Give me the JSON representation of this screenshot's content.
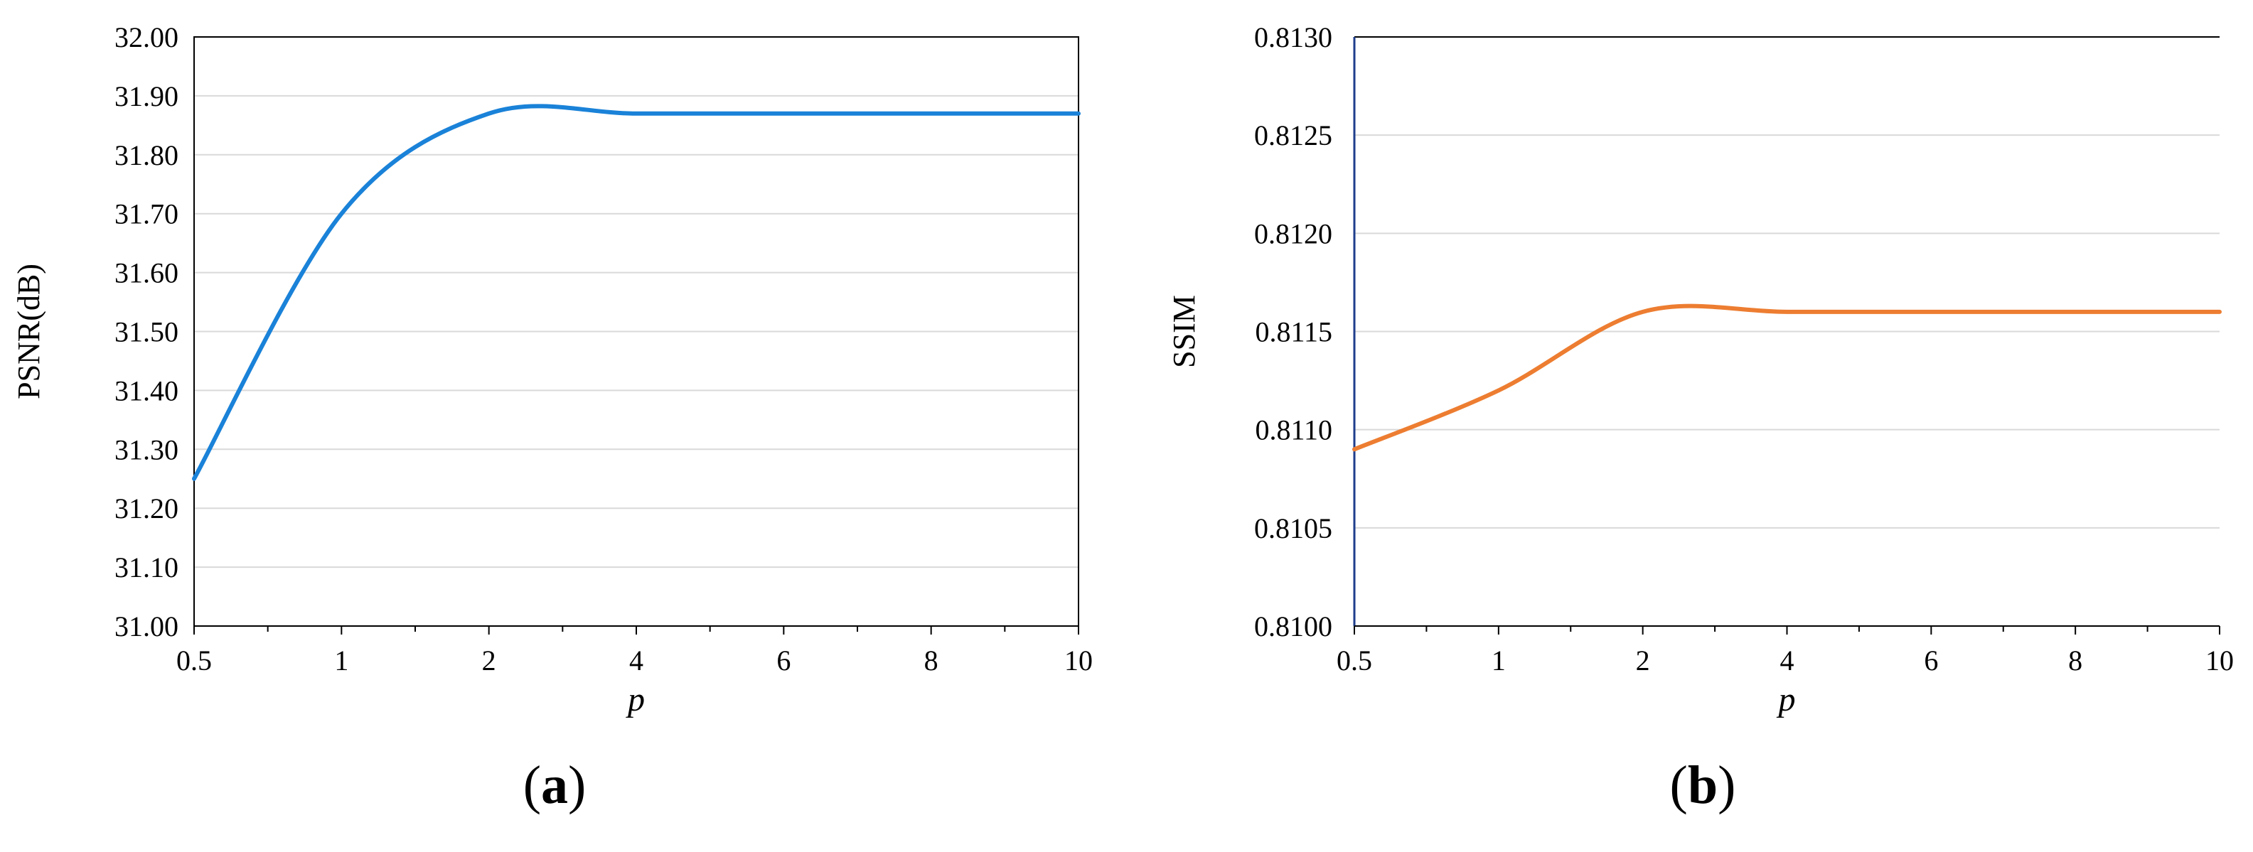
{
  "chart_data": [
    {
      "type": "line",
      "panel_label": "a",
      "xlabel": "p",
      "ylabel": "PSNR(dB)",
      "x_ticks": [
        "0.5",
        "1",
        "2",
        "4",
        "6",
        "8",
        "10"
      ],
      "y_ticks": [
        "31.00",
        "31.10",
        "31.20",
        "31.30",
        "31.40",
        "31.50",
        "31.60",
        "31.70",
        "31.80",
        "31.90",
        "32.00"
      ],
      "ylim": [
        31.0,
        32.0
      ],
      "grid": "horizontal",
      "series": [
        {
          "color": "#1a82d8",
          "x": [
            "0.5",
            "1",
            "2",
            "4",
            "6",
            "8",
            "10"
          ],
          "values": [
            31.25,
            31.7,
            31.87,
            31.87,
            31.87,
            31.87,
            31.87
          ]
        }
      ]
    },
    {
      "type": "line",
      "panel_label": "b",
      "xlabel": "p",
      "ylabel": "SSIM",
      "x_ticks": [
        "0.5",
        "1",
        "2",
        "4",
        "6",
        "8",
        "10"
      ],
      "y_ticks": [
        "0.8100",
        "0.8105",
        "0.8110",
        "0.8115",
        "0.8120",
        "0.8125",
        "0.8130"
      ],
      "ylim": [
        0.81,
        0.813
      ],
      "grid": "horizontal",
      "series": [
        {
          "color": "#ed7d31",
          "x": [
            "0.5",
            "1",
            "2",
            "4",
            "6",
            "8",
            "10"
          ],
          "values": [
            0.8109,
            0.8112,
            0.8116,
            0.8116,
            0.8116,
            0.8116,
            0.8116
          ]
        }
      ]
    }
  ]
}
